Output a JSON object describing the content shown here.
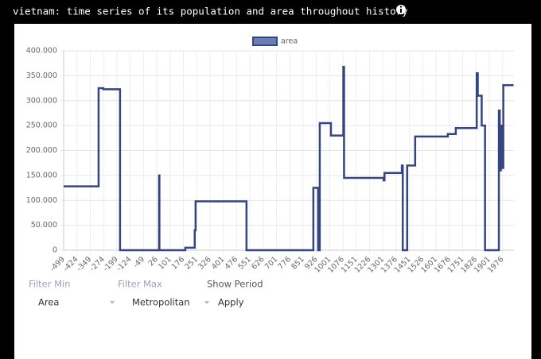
{
  "header": {
    "title": "vietnam: time series of its population and area throughout history"
  },
  "chart_data": {
    "type": "line",
    "x": [
      -499,
      -302,
      -302,
      -275,
      -275,
      -181,
      -181,
      39,
      39,
      41,
      41,
      187,
      187,
      240,
      240,
      245,
      245,
      532,
      532,
      909,
      909,
      936,
      936,
      945,
      945,
      1008,
      1008,
      1078,
      1078,
      1082,
      1082,
      1305,
      1305,
      1310,
      1310,
      1408,
      1408,
      1413,
      1413,
      1438,
      1438,
      1483,
      1483,
      1667,
      1667,
      1712,
      1712,
      1830,
      1830,
      1836,
      1836,
      1858,
      1858,
      1877,
      1877,
      1955,
      1955,
      1960,
      1960,
      1966,
      1966,
      1972,
      1972,
      1980,
      1980,
      2038
    ],
    "series": [
      {
        "name": "area",
        "color": "#34457f",
        "values": [
          128000,
          128000,
          325000,
          325000,
          323000,
          323000,
          0,
          0,
          150000,
          150000,
          0,
          0,
          5000,
          5000,
          40000,
          40000,
          98000,
          98000,
          0,
          0,
          125000,
          125000,
          0,
          0,
          255000,
          255000,
          230000,
          230000,
          368000,
          368000,
          145000,
          145000,
          140000,
          140000,
          155000,
          155000,
          170000,
          170000,
          0,
          0,
          170000,
          170000,
          228000,
          228000,
          233000,
          233000,
          245000,
          245000,
          355000,
          355000,
          310000,
          310000,
          250000,
          250000,
          0,
          0,
          280000,
          280000,
          160000,
          160000,
          250000,
          250000,
          165000,
          165000,
          331000,
          331000
        ]
      }
    ],
    "xlim": [
      -499,
      2040
    ],
    "xticks": [
      -499,
      -424,
      -349,
      -274,
      -199,
      -124,
      -49,
      26,
      101,
      176,
      251,
      326,
      401,
      476,
      551,
      626,
      701,
      776,
      851,
      926,
      1001,
      1076,
      1151,
      1226,
      1301,
      1376,
      1451,
      1526,
      1601,
      1676,
      1751,
      1826,
      1901,
      1976
    ],
    "ylim": [
      0,
      400000
    ],
    "yticks": [
      0,
      {
        "value": 50000,
        "label": "50.000"
      },
      {
        "value": 100000,
        "label": "100.000"
      },
      {
        "value": 150000,
        "label": "150.000"
      },
      {
        "value": 200000,
        "label": "200.000"
      },
      {
        "value": 250000,
        "label": "250.000"
      },
      {
        "value": 300000,
        "label": "300.000"
      },
      {
        "value": 350000,
        "label": "350.000"
      },
      {
        "value": 400000,
        "label": "400.000"
      }
    ],
    "grid": true,
    "legend": "top"
  },
  "controls": {
    "filter_min": "Filter Min",
    "filter_max": "Filter Max",
    "show_period": "Show Period",
    "measure": "Area",
    "region": "Metropolitan",
    "apply": "Apply"
  }
}
